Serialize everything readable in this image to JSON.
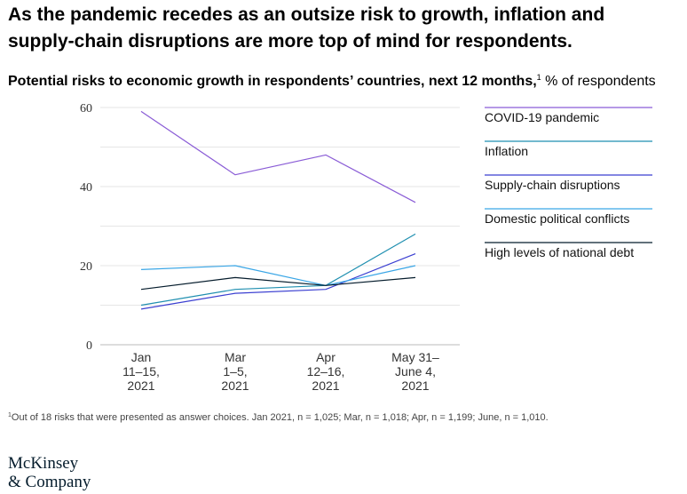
{
  "headline": "As the pandemic recedes as an outsize risk to growth, inflation and supply-chain disruptions are more top of mind for respondents.",
  "subtitle": {
    "bold": "Potential risks to economic growth in respondents’ countries, next 12 months,",
    "note_ref": "1",
    "rest": " % of respondents"
  },
  "footnote": {
    "ref": "1",
    "text": "Out of 18 risks that were presented as answer choices. Jan 2021, n = 1,025; Mar, n = 1,018; Apr, n = 1,199; June, n = 1,010."
  },
  "logo": {
    "line1": "McKinsey",
    "line2": "& Company"
  },
  "chart_data": {
    "type": "line",
    "categories": [
      [
        "Jan",
        "11–15,",
        "2021"
      ],
      [
        "Mar",
        "1–5,",
        "2021"
      ],
      [
        "Apr",
        "12–16,",
        "2021"
      ],
      [
        "May 31–",
        "June 4,",
        "2021"
      ]
    ],
    "ylim": [
      0,
      60
    ],
    "yticks": [
      0,
      20,
      40,
      60
    ],
    "grid": true,
    "legend_position": "right",
    "series": [
      {
        "name": "COVID-19 pandemic",
        "color": "#8a5cd6",
        "values": [
          59,
          43,
          48,
          36
        ]
      },
      {
        "name": "Inflation",
        "color": "#1f8fb0",
        "values": [
          10,
          14,
          15,
          28
        ]
      },
      {
        "name": "Supply-chain disruptions",
        "color": "#3b3fd1",
        "values": [
          9,
          13,
          14,
          23
        ]
      },
      {
        "name": "Domestic political conflicts",
        "color": "#3aa6e6",
        "values": [
          19,
          20,
          15,
          20
        ]
      },
      {
        "name": "High levels of national debt",
        "color": "#051c2c",
        "values": [
          14,
          17,
          15,
          17
        ]
      }
    ]
  }
}
